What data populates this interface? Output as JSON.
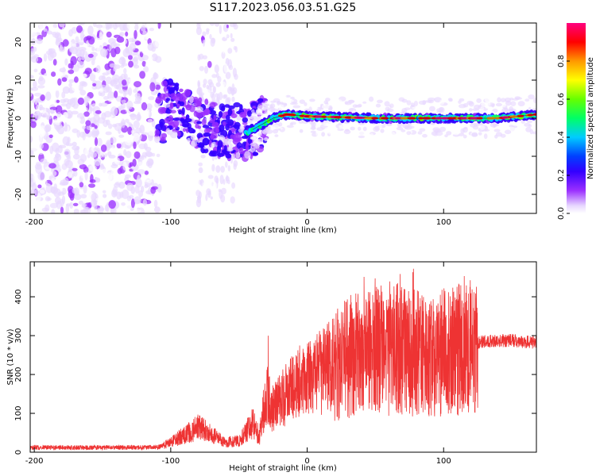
{
  "title": "S117.2023.056.03.51.G25",
  "chart_data": [
    {
      "type": "heatmap",
      "name": "spectrogram",
      "xlabel": "Height of straight line (km)",
      "ylabel": "Frequency (Hz)",
      "xlim": [
        -203,
        168
      ],
      "ylim": [
        -25,
        25
      ],
      "xticks": [
        -200,
        -100,
        0,
        100
      ],
      "yticks": [
        -20,
        -10,
        0,
        10,
        20
      ],
      "colorbar": {
        "label": "Normalized spectral amplitude",
        "range": [
          0,
          1
        ],
        "ticks": [
          "0.0",
          "0.2",
          "0.4",
          "0.6",
          "0.8"
        ],
        "colors": [
          "#ffffff",
          "#e8d8ff",
          "#9b30ff",
          "#3300ff",
          "#0040ff",
          "#00ccff",
          "#00ff66",
          "#66ff00",
          "#ffff00",
          "#ff9900",
          "#ff0000",
          "#ff007f"
        ]
      },
      "ridge_center_hz": [
        {
          "x": -105,
          "y": 4
        },
        {
          "x": -95,
          "y": 2
        },
        {
          "x": -85,
          "y": 0
        },
        {
          "x": -75,
          "y": -2
        },
        {
          "x": -62,
          "y": -4
        },
        {
          "x": -55,
          "y": -3
        },
        {
          "x": -45,
          "y": -4
        },
        {
          "x": -35,
          "y": -2
        },
        {
          "x": -25,
          "y": 0
        },
        {
          "x": -15,
          "y": 1
        },
        {
          "x": 0,
          "y": 0.5
        },
        {
          "x": 50,
          "y": 0
        },
        {
          "x": 100,
          "y": 0
        },
        {
          "x": 140,
          "y": 0
        },
        {
          "x": 168,
          "y": 1
        }
      ]
    },
    {
      "type": "line",
      "name": "snr",
      "xlabel": "Height of straight line (km)",
      "ylabel": "SNR (10 * v/v)",
      "xlim": [
        -203,
        168
      ],
      "ylim": [
        0,
        490
      ],
      "xticks": [
        -200,
        -100,
        0,
        100
      ],
      "yticks": [
        0,
        100,
        200,
        300,
        400
      ],
      "color": "#ee3333",
      "envelope": [
        {
          "x": -203,
          "y": 12
        },
        {
          "x": -110,
          "y": 12
        },
        {
          "x": -100,
          "y": 25
        },
        {
          "x": -90,
          "y": 45
        },
        {
          "x": -80,
          "y": 65
        },
        {
          "x": -70,
          "y": 45
        },
        {
          "x": -60,
          "y": 25
        },
        {
          "x": -50,
          "y": 30
        },
        {
          "x": -40,
          "y": 75
        },
        {
          "x": -35,
          "y": 40
        },
        {
          "x": -30,
          "y": 150
        },
        {
          "x": -25,
          "y": 110
        },
        {
          "x": -15,
          "y": 150
        },
        {
          "x": -5,
          "y": 180
        },
        {
          "x": 5,
          "y": 190
        },
        {
          "x": 15,
          "y": 220
        },
        {
          "x": 30,
          "y": 245
        },
        {
          "x": 45,
          "y": 260
        },
        {
          "x": 60,
          "y": 265
        },
        {
          "x": 75,
          "y": 260
        },
        {
          "x": 90,
          "y": 250
        },
        {
          "x": 105,
          "y": 260
        },
        {
          "x": 115,
          "y": 275
        },
        {
          "x": 130,
          "y": 285
        },
        {
          "x": 150,
          "y": 288
        },
        {
          "x": 168,
          "y": 282
        }
      ]
    }
  ]
}
